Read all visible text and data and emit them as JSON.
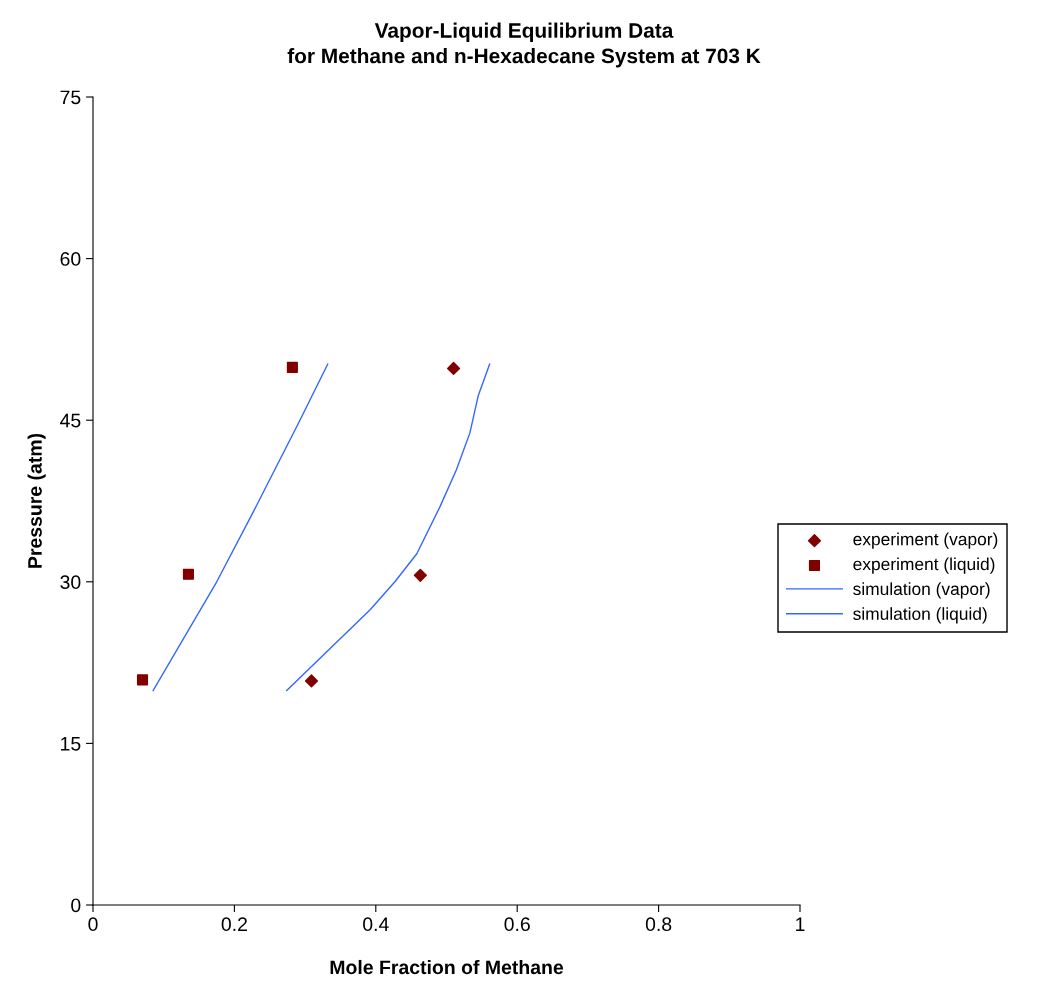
{
  "chart_data": {
    "type": "scatter",
    "title": "Vapor-Liquid Equilibrium Data\nfor Methane and n-Hexadecane System at 703 K",
    "xlabel": "Mole Fraction of Methane",
    "ylabel": "Pressure (atm)",
    "xlim": [
      0,
      1
    ],
    "xticks": [
      0,
      0.2,
      0.4,
      0.6,
      0.8,
      1
    ],
    "ylim": [
      0,
      75
    ],
    "yticks": [
      0,
      15,
      30,
      45,
      60,
      75
    ],
    "grid": false,
    "legend": "right",
    "series": [
      {
        "name": "experiment (vapor)",
        "marker": "diamond",
        "color": "#800000",
        "x": [
          0.309,
          0.463,
          0.51
        ],
        "values": [
          20.8,
          30.6,
          49.8
        ]
      },
      {
        "name": "experiment (liquid)",
        "marker": "square",
        "color": "#800000",
        "x": [
          0.07,
          0.135,
          0.282
        ],
        "values": [
          20.9,
          30.7,
          49.9
        ]
      },
      {
        "name": "simulation (vapor)",
        "type": "line",
        "marker": "none",
        "color": "#3366ff",
        "x": [
          0.274,
          0.392,
          0.427,
          0.458,
          0.491,
          0.514,
          0.533,
          0.545,
          0.561
        ],
        "values": [
          19.9,
          27.4,
          30.0,
          32.6,
          37.0,
          40.4,
          43.8,
          47.3,
          50.2
        ]
      },
      {
        "name": "simulation (liquid)",
        "type": "line",
        "marker": "none",
        "color": "#3366ff",
        "x": [
          0.085,
          0.175,
          0.226,
          0.292,
          0.332
        ],
        "values": [
          19.9,
          30.0,
          36.4,
          44.9,
          50.2
        ]
      }
    ]
  }
}
